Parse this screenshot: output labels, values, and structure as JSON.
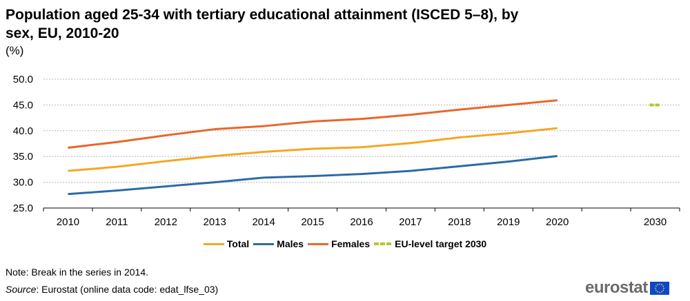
{
  "title": "Population aged 25-34 with tertiary educational attainment (ISCED 5–8), by sex, EU, 2010-20",
  "unit": "(%)",
  "note": "Note: Break in the series in 2014.",
  "source": {
    "prefix": "Source",
    "text": ": Eurostat (online data code: edat_lfse_03)"
  },
  "logo": {
    "text": "eurostat",
    "icon": "eu-flag-icon"
  },
  "chart_data": {
    "type": "line",
    "categories": [
      "2010",
      "2011",
      "2012",
      "2013",
      "2014",
      "2015",
      "2016",
      "2017",
      "2018",
      "2019",
      "2020",
      "",
      "2030"
    ],
    "ylim": [
      25,
      50
    ],
    "yticks": [
      "25.0",
      "30.0",
      "35.0",
      "40.0",
      "45.0",
      "50.0"
    ],
    "grid": true,
    "legend_position": "bottom",
    "series": [
      {
        "name": "Total",
        "color": "#f5a623",
        "values": [
          32.2,
          33.0,
          34.1,
          35.1,
          35.9,
          36.5,
          36.8,
          37.6,
          38.7,
          39.5,
          40.5,
          null,
          null
        ]
      },
      {
        "name": "Males",
        "color": "#2c6aa9",
        "values": [
          27.7,
          28.4,
          29.2,
          30.0,
          30.9,
          31.2,
          31.6,
          32.2,
          33.1,
          34.0,
          35.1,
          null,
          null
        ]
      },
      {
        "name": "Females",
        "color": "#e8672a",
        "values": [
          36.7,
          37.8,
          39.1,
          40.3,
          40.9,
          41.8,
          42.3,
          43.1,
          44.1,
          45.0,
          45.9,
          null,
          null
        ]
      },
      {
        "name": "EU-level target 2030",
        "color": "#b6c42a",
        "values": [
          null,
          null,
          null,
          null,
          null,
          null,
          null,
          null,
          null,
          null,
          null,
          null,
          45.0
        ]
      }
    ]
  }
}
